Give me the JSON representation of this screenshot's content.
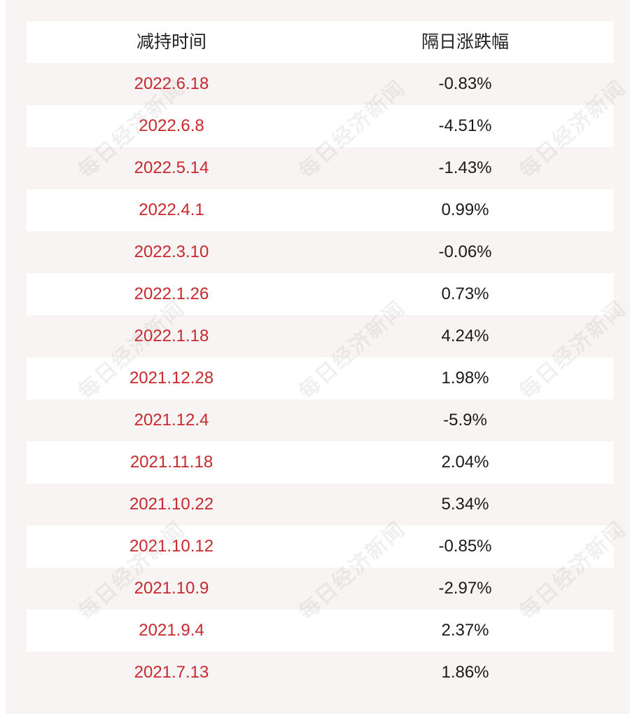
{
  "table": {
    "headers": [
      "减持时间",
      "隔日涨跌幅"
    ],
    "rows": [
      {
        "date": "2022.6.18",
        "change": "-0.83%"
      },
      {
        "date": "2022.6.8",
        "change": "-4.51%"
      },
      {
        "date": "2022.5.14",
        "change": "-1.43%"
      },
      {
        "date": "2022.4.1",
        "change": "0.99%"
      },
      {
        "date": "2022.3.10",
        "change": "-0.06%"
      },
      {
        "date": "2022.1.26",
        "change": "0.73%"
      },
      {
        "date": "2022.1.18",
        "change": "4.24%"
      },
      {
        "date": "2021.12.28",
        "change": "1.98%"
      },
      {
        "date": "2021.12.4",
        "change": "-5.9%"
      },
      {
        "date": "2021.11.18",
        "change": "2.04%"
      },
      {
        "date": "2021.10.22",
        "change": "5.34%"
      },
      {
        "date": "2021.10.12",
        "change": "-0.85%"
      },
      {
        "date": "2021.10.9",
        "change": "-2.97%"
      },
      {
        "date": "2021.9.4",
        "change": "2.37%"
      },
      {
        "date": "2021.7.13",
        "change": "1.86%"
      }
    ]
  },
  "watermark": {
    "text": "每日经济新闻"
  },
  "colors": {
    "date_text": "#c8282e",
    "value_text": "#1a1a1a",
    "header_text": "#222222",
    "band_background": "#f8f4f4",
    "row_background": "#ffffff"
  }
}
